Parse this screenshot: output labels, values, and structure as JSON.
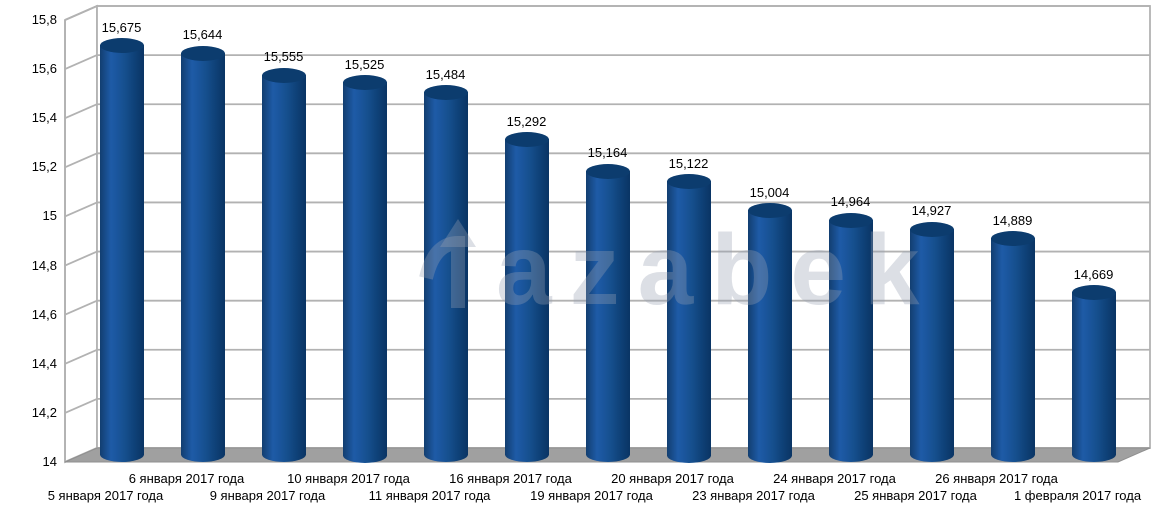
{
  "watermark": {
    "brand": "Tazabek",
    "text_part": "azabek",
    "color": "rgba(152,162,180,0.34)"
  },
  "chart_data": {
    "type": "bar",
    "style_3d": "cylinder",
    "title": "",
    "xlabel": "",
    "ylabel": "",
    "legend": "none",
    "grid": true,
    "ylim": [
      14,
      15.8
    ],
    "y_step": 0.2,
    "y_ticks": [
      "15,8",
      "15,6",
      "15,4",
      "15,2",
      "15",
      "14,8",
      "14,6",
      "14,4",
      "14,2",
      "14"
    ],
    "categories": [
      "5 января 2017 года",
      "6 января 2017 года",
      "9 января 2017 года",
      "10 января 2017 года",
      "11 января 2017 года",
      "16 января 2017 года",
      "19 января 2017 года",
      "20 января 2017 года",
      "23 января 2017 года",
      "24 января 2017 года",
      "25 января 2017 года",
      "26 января 2017 года",
      "1 февраля 2017 года"
    ],
    "values": [
      15.675,
      15.644,
      15.555,
      15.525,
      15.484,
      15.292,
      15.164,
      15.122,
      15.004,
      14.964,
      14.927,
      14.889,
      14.669
    ],
    "data_labels": [
      "15,675",
      "15,644",
      "15,555",
      "15,525",
      "15,484",
      "15,292",
      "15,164",
      "15,122",
      "15,004",
      "14,964",
      "14,927",
      "14,889",
      "14,669"
    ],
    "colors": {
      "bar_body": "#16508f",
      "bar_body_light": "#1e5ba7",
      "bar_body_dark": "#0a3464",
      "bar_cap": "#0c3c6e",
      "wall_lines": "#b2b2b2",
      "floor": "#a0a0a0",
      "floor_edge": "#8f8f8f",
      "text": "#000000",
      "background": "#ffffff"
    }
  }
}
